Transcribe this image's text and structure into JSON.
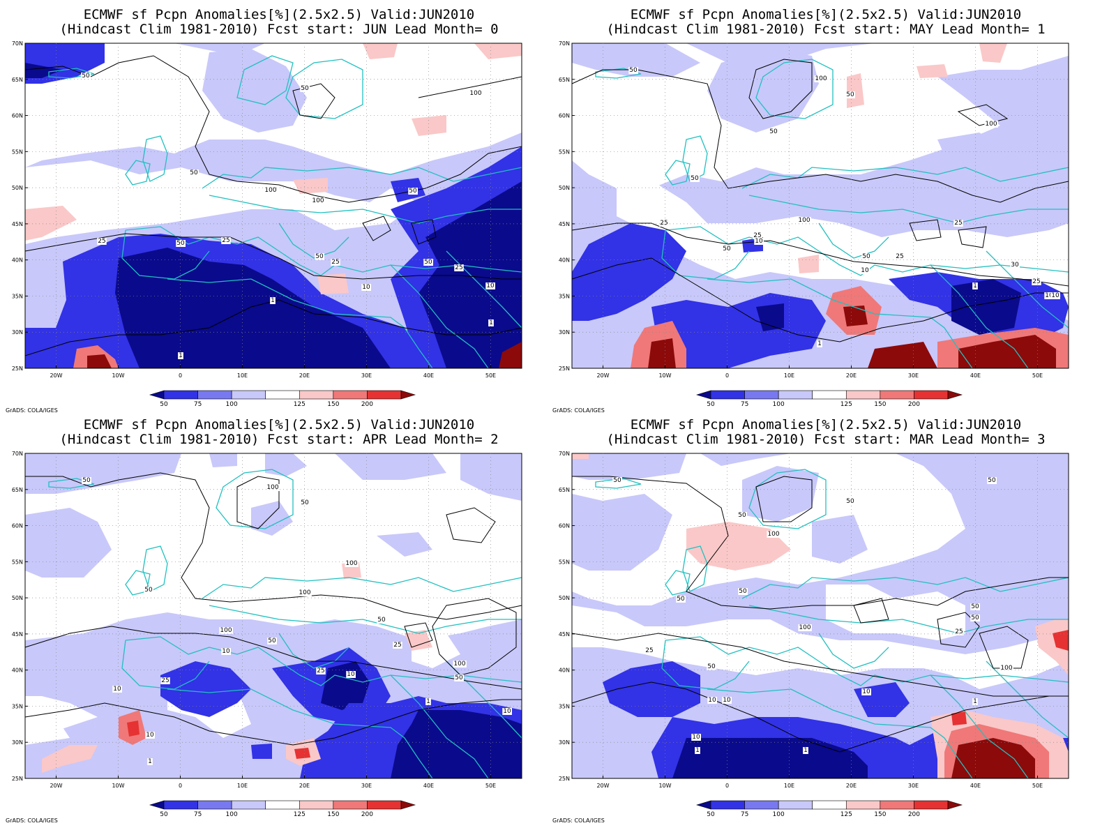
{
  "credit": "GrADS: COLA/IGES",
  "lat_ticks": [
    "70N",
    "65N",
    "60N",
    "55N",
    "50N",
    "45N",
    "40N",
    "35N",
    "30N",
    "25N"
  ],
  "lon_ticks": [
    "20W",
    "10W",
    "0",
    "10E",
    "20E",
    "30E",
    "40E",
    "50E"
  ],
  "colorbar": {
    "labels": [
      "50",
      "75",
      "100",
      "125",
      "150",
      "200"
    ],
    "colors": [
      "#0a0a8c",
      "#3232e6",
      "#7878f0",
      "#c8c8fa",
      "#ffffff",
      "#fac8c8",
      "#f07878",
      "#e63232",
      "#8c0a0a"
    ]
  },
  "coastline_color": "#20c0c0",
  "panels": [
    {
      "title_line1": "ECMWF sf Pcpn Anomalies[%](2.5x2.5) Valid:JUN2010",
      "title_line2": "(Hindcast Clim 1981-2010) Fcst start: JUN  Lead Month= 0",
      "contour_labels": [
        "50",
        "50",
        "100",
        "50",
        "100",
        "100",
        "50",
        "25",
        "50",
        "25",
        "25",
        "50",
        "50",
        "25",
        "10",
        "1",
        "10",
        "1",
        "1"
      ]
    },
    {
      "title_line1": "ECMWF sf Pcpn Anomalies[%](2.5x2.5) Valid:JUN2010",
      "title_line2": "(Hindcast Clim 1981-2010) Fcst start: MAY  Lead Month= 1",
      "contour_labels": [
        "50",
        "100",
        "50",
        "50",
        "100",
        "50",
        "100",
        "25",
        "25",
        "50",
        "10",
        "25",
        "50",
        "25",
        "10",
        "1",
        "10",
        "1",
        "30",
        "25",
        "10"
      ]
    },
    {
      "title_line1": "ECMWF sf Pcpn Anomalies[%](2.5x2.5) Valid:JUN2010",
      "title_line2": "(Hindcast Clim 1981-2010) Fcst start: APR  Lead Month= 2",
      "contour_labels": [
        "50",
        "100",
        "50",
        "50",
        "100",
        "100",
        "50",
        "100",
        "50",
        "10",
        "25",
        "25",
        "10",
        "10",
        "10",
        "1",
        "25",
        "10",
        "50",
        "100",
        "1"
      ]
    },
    {
      "title_line1": "ECMWF sf Pcpn Anomalies[%](2.5x2.5) Valid:JUN2010",
      "title_line2": "(Hindcast Clim 1981-2010) Fcst start: MAR  Lead Month= 3",
      "contour_labels": [
        "50",
        "50",
        "100",
        "50",
        "50",
        "50",
        "50",
        "100",
        "25",
        "50",
        "10",
        "10",
        "10",
        "10",
        "1",
        "1",
        "25",
        "1",
        "100",
        "50",
        "50"
      ]
    }
  ]
}
